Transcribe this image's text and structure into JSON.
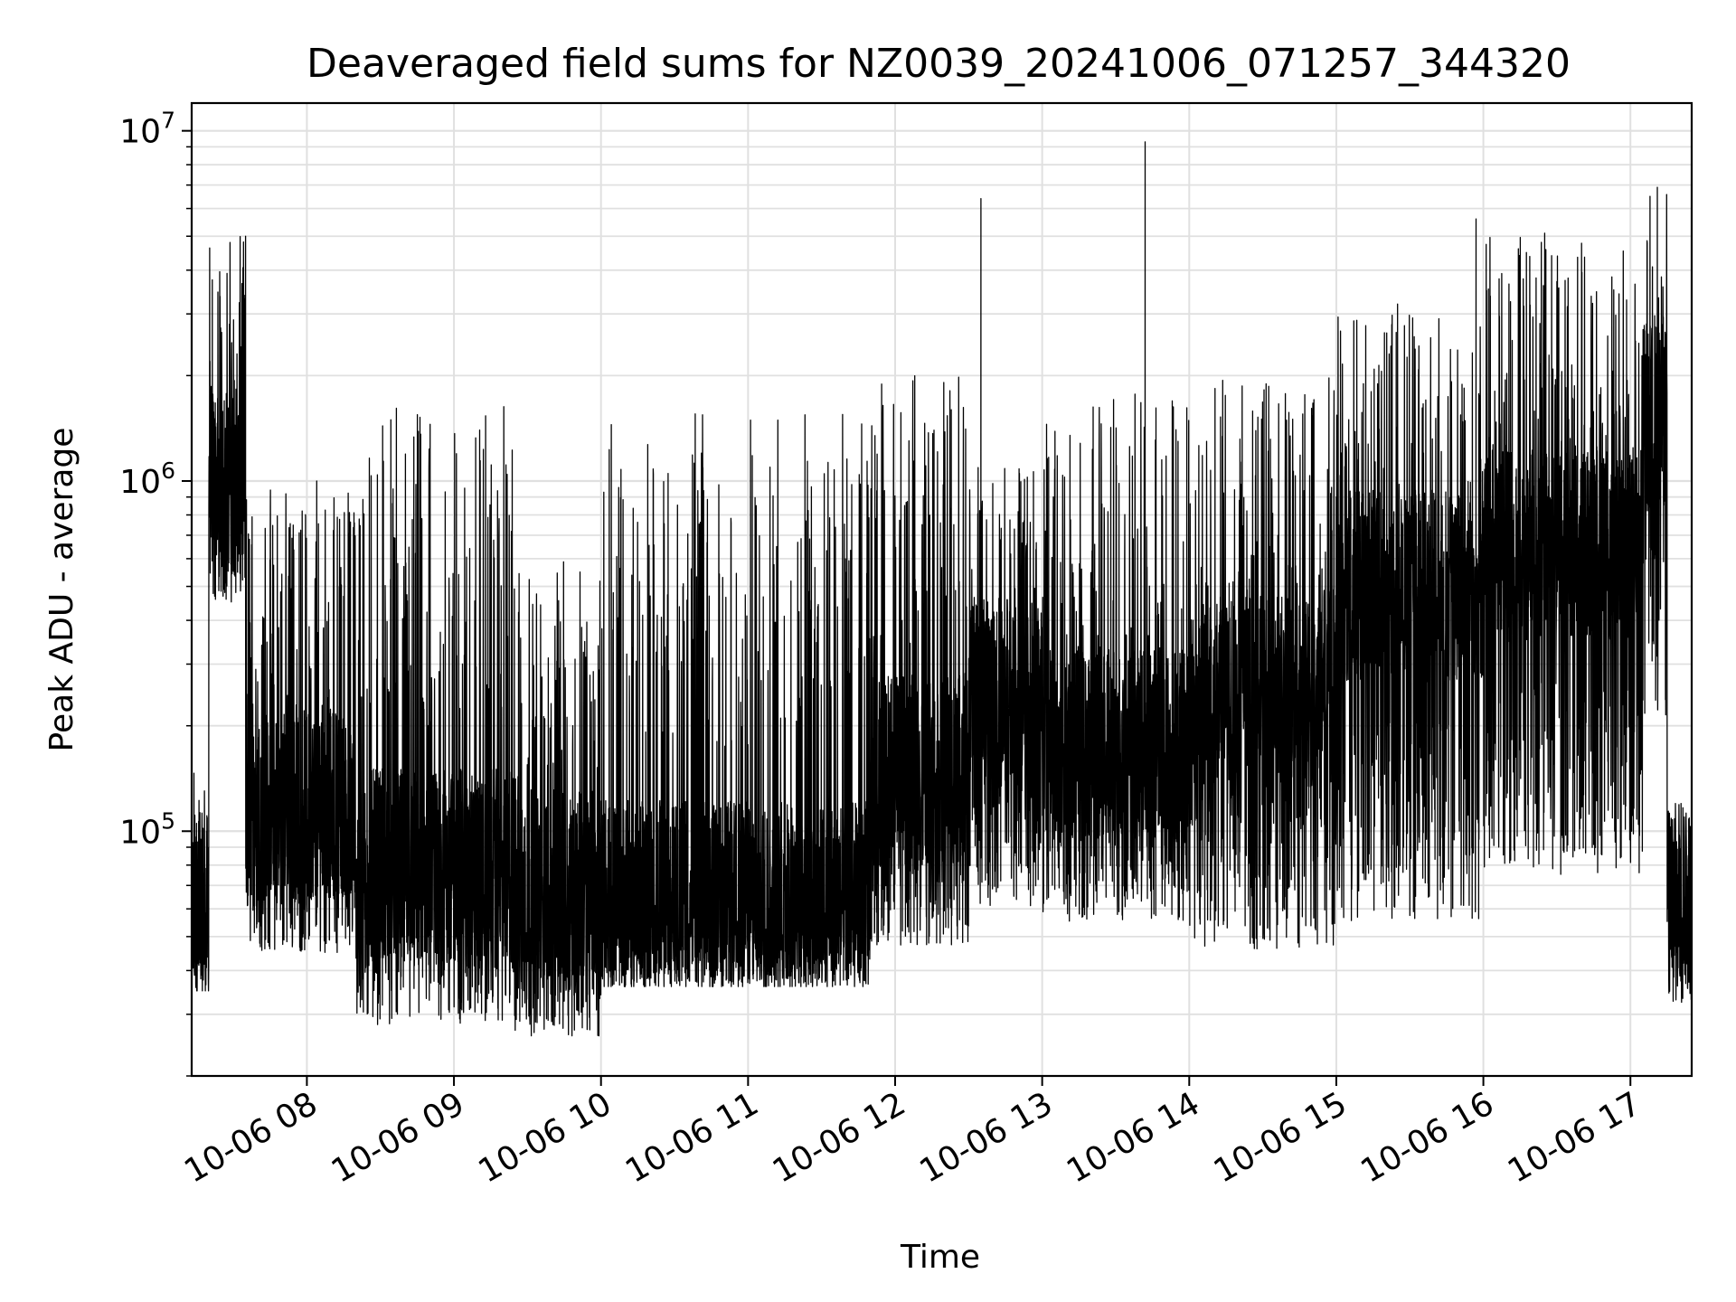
{
  "chart_data": {
    "type": "line",
    "title": "Deaveraged field sums for NZ0039_20241006_071257_344320",
    "xlabel": "Time",
    "ylabel": "Peak ADU - average",
    "yscale": "log",
    "ylim": [
      20000,
      12000000
    ],
    "xlim": [
      "2024-10-06 07:13",
      "2024-10-06 17:25"
    ],
    "grid": true,
    "line_color": "#000000",
    "grid_color": "#e0e0e0",
    "x_ticks": [
      {
        "value": "2024-10-06 08:00",
        "label": "10-06 08"
      },
      {
        "value": "2024-10-06 09:00",
        "label": "10-06 09"
      },
      {
        "value": "2024-10-06 10:00",
        "label": "10-06 10"
      },
      {
        "value": "2024-10-06 11:00",
        "label": "10-06 11"
      },
      {
        "value": "2024-10-06 12:00",
        "label": "10-06 12"
      },
      {
        "value": "2024-10-06 13:00",
        "label": "10-06 13"
      },
      {
        "value": "2024-10-06 14:00",
        "label": "10-06 14"
      },
      {
        "value": "2024-10-06 15:00",
        "label": "10-06 15"
      },
      {
        "value": "2024-10-06 16:00",
        "label": "10-06 16"
      },
      {
        "value": "2024-10-06 17:00",
        "label": "10-06 17"
      }
    ],
    "y_ticks": [
      {
        "value": 100000,
        "mantissa": "10",
        "exp": "5"
      },
      {
        "value": 1000000,
        "mantissa": "10",
        "exp": "6"
      },
      {
        "value": 10000000,
        "mantissa": "10",
        "exp": "7"
      }
    ],
    "segments": [
      {
        "start": "2024-10-06 07:13",
        "end": "2024-10-06 07:20",
        "low": 35000,
        "typical": 60000,
        "high": 160000
      },
      {
        "start": "2024-10-06 07:20",
        "end": "2024-10-06 07:35",
        "low": 450000,
        "typical": 1000000,
        "high": 5000000
      },
      {
        "start": "2024-10-06 07:35",
        "end": "2024-10-06 08:20",
        "low": 45000,
        "typical": 120000,
        "high": 1000000
      },
      {
        "start": "2024-10-06 08:20",
        "end": "2024-10-06 09:25",
        "low": 28000,
        "typical": 80000,
        "high": 1650000
      },
      {
        "start": "2024-10-06 09:25",
        "end": "2024-10-06 10:00",
        "low": 26000,
        "typical": 70000,
        "high": 600000
      },
      {
        "start": "2024-10-06 10:00",
        "end": "2024-10-06 11:50",
        "low": 36000,
        "typical": 65000,
        "high": 1600000
      },
      {
        "start": "2024-10-06 11:50",
        "end": "2024-10-06 12:30",
        "low": 47000,
        "typical": 150000,
        "high": 2000000
      },
      {
        "start": "2024-10-06 12:30",
        "end": "2024-10-06 13:00",
        "low": 60000,
        "typical": 250000,
        "high": 1200000
      },
      {
        "start": "2024-10-06 13:00",
        "end": "2024-10-06 14:00",
        "low": 55000,
        "typical": 180000,
        "high": 1800000
      },
      {
        "start": "2024-10-06 14:00",
        "end": "2024-10-06 15:00",
        "low": 46000,
        "typical": 250000,
        "high": 2000000
      },
      {
        "start": "2024-10-06 15:00",
        "end": "2024-10-06 16:00",
        "low": 55000,
        "typical": 500000,
        "high": 3000000
      },
      {
        "start": "2024-10-06 16:00",
        "end": "2024-10-06 17:05",
        "low": 75000,
        "typical": 650000,
        "high": 5000000
      },
      {
        "start": "2024-10-06 17:05",
        "end": "2024-10-06 17:15",
        "low": 200000,
        "typical": 1500000,
        "high": 6800000
      },
      {
        "start": "2024-10-06 17:15",
        "end": "2024-10-06 17:25",
        "low": 31000,
        "typical": 70000,
        "high": 120000
      }
    ],
    "spikes": [
      {
        "time": "2024-10-06 07:35",
        "value": 5000000
      },
      {
        "time": "2024-10-06 08:04",
        "value": 1000000
      },
      {
        "time": "2024-10-06 12:35",
        "value": 6400000
      },
      {
        "time": "2024-10-06 13:42",
        "value": 9300000
      },
      {
        "time": "2024-10-06 15:25",
        "value": 3200000
      },
      {
        "time": "2024-10-06 15:57",
        "value": 5600000
      },
      {
        "time": "2024-10-06 16:25",
        "value": 5100000
      },
      {
        "time": "2024-10-06 17:08",
        "value": 6500000
      },
      {
        "time": "2024-10-06 17:11",
        "value": 6900000
      }
    ]
  }
}
